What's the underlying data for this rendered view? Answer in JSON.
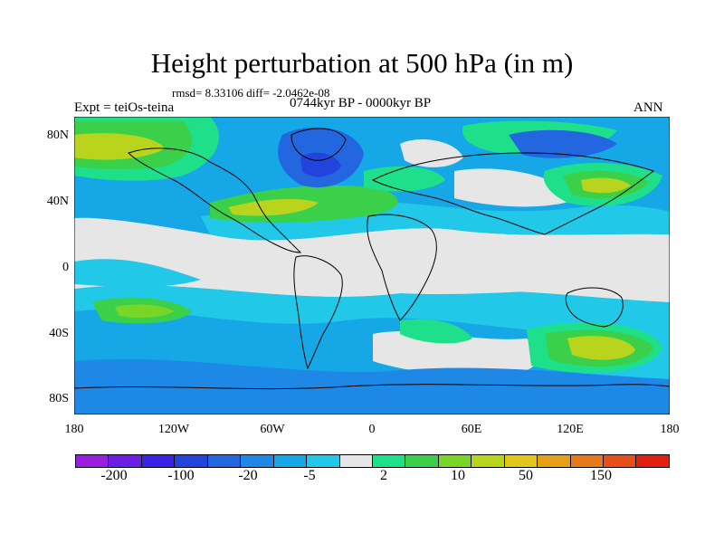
{
  "title": "Height perturbation at 500 hPa (in m)",
  "stats": "rmsd= 8.33106 diff= -2.0462e-08",
  "period": "0744kyr BP - 0000kyr BP",
  "expt": "Expt = teiOs-teina",
  "season": "ANN",
  "lat_labels": [
    "80N",
    "40N",
    "0",
    "40S",
    "80S"
  ],
  "lon_labels": [
    "180",
    "120W",
    "60W",
    "0",
    "60E",
    "120E",
    "180"
  ],
  "colorbar": {
    "labels": [
      "-200",
      "-100",
      "-20",
      "-5",
      "2",
      "10",
      "50",
      "150"
    ],
    "colors": [
      "#9a1ee0",
      "#6a1ee6",
      "#3a22e6",
      "#2244dd",
      "#2266e0",
      "#1e88e6",
      "#16a8e6",
      "#22c8e8",
      "#e6e6e6",
      "#1ee08a",
      "#3ad04a",
      "#7ad626",
      "#b8d41c",
      "#e0c81a",
      "#e6a018",
      "#e67a18",
      "#e65018",
      "#e02010"
    ]
  },
  "map_colors": {
    "neutral": "#e6e6e6",
    "cyan": "#22c8e8",
    "sky": "#16a8e6",
    "blue": "#1e88e6",
    "deepblue": "#2266e0",
    "navy": "#2244dd",
    "teal": "#1ee08a",
    "green": "#3ad04a",
    "lime": "#7ad626",
    "yellowgreen": "#b8d41c",
    "mustard": "#e0c81a",
    "coast": "#000000"
  }
}
